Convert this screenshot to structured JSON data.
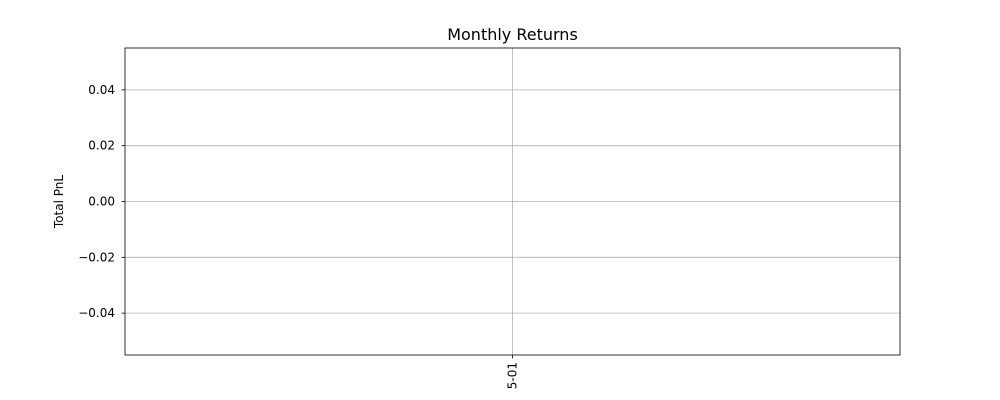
{
  "chart_data": {
    "type": "bar",
    "title": "Monthly Returns",
    "xlabel": "",
    "ylabel": "Total PnL",
    "categories": [
      "5-01"
    ],
    "values": [
      0
    ],
    "ylim": [
      -0.055,
      0.055
    ],
    "yticks": [
      0.04,
      0.02,
      0.0,
      -0.02,
      -0.04
    ],
    "ytick_labels": [
      "0.04",
      "0.02",
      "0.00",
      "−0.02",
      "−0.04"
    ],
    "xtick_labels": [
      "5-01"
    ],
    "grid": true,
    "legend": false
  }
}
